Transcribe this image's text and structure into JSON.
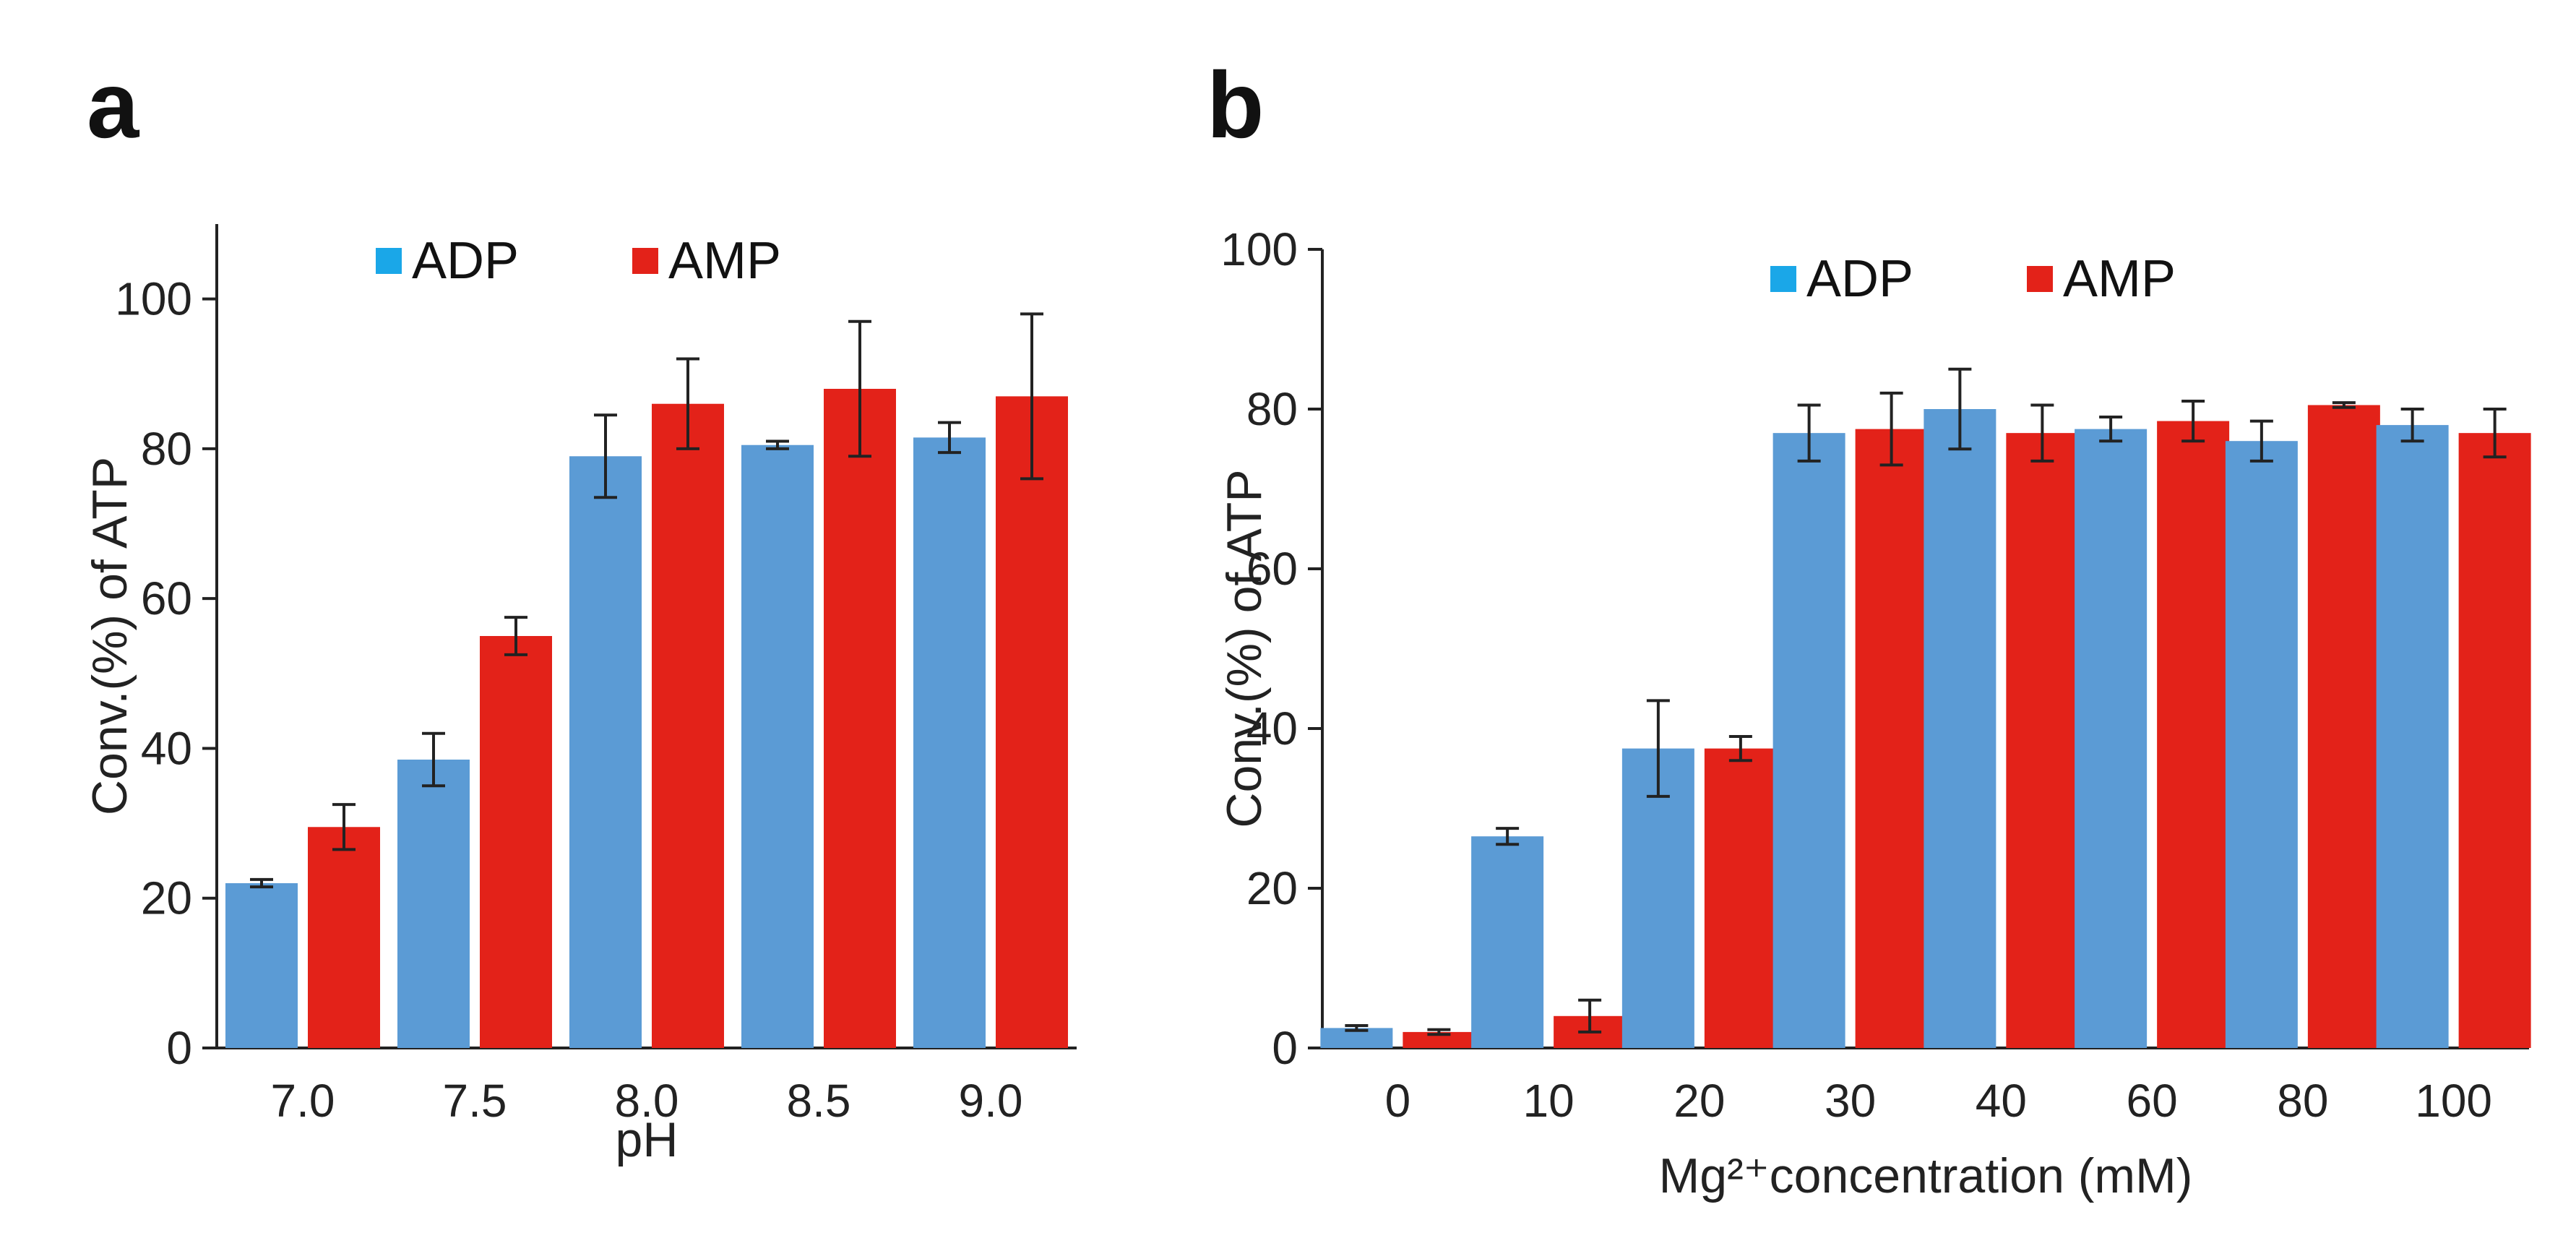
{
  "chart_data": [
    {
      "panel": "a",
      "type": "bar",
      "title": "",
      "xlabel": "pH",
      "ylabel": "Conv.(%) of ATP",
      "categories": [
        "7.0",
        "7.5",
        "8.0",
        "8.5",
        "9.0"
      ],
      "ylim": [
        0,
        110
      ],
      "yticks": [
        0,
        20,
        40,
        60,
        80,
        100
      ],
      "yticklabels": [
        "0",
        "20",
        "40",
        "60",
        "80",
        "100"
      ],
      "grid": false,
      "legend_position": "top",
      "series": [
        {
          "name": "ADP",
          "color": "#5b9bd5",
          "values": [
            22,
            38.5,
            79,
            80.5,
            81.5
          ],
          "errors": [
            0.5,
            3.5,
            5.5,
            0.5,
            2
          ]
        },
        {
          "name": "AMP",
          "color": "#e32219",
          "values": [
            29.5,
            55,
            86,
            88,
            87
          ],
          "errors": [
            3,
            2.5,
            6,
            9,
            11
          ]
        }
      ]
    },
    {
      "panel": "b",
      "type": "bar",
      "title": "",
      "xlabel": "Mg²⁺concentration (mM)",
      "ylabel": "Conv.(%) of ATP",
      "categories": [
        "0",
        "10",
        "20",
        "30",
        "40",
        "60",
        "80",
        "100"
      ],
      "ylim": [
        0,
        100
      ],
      "yticks": [
        0,
        20,
        40,
        60,
        80,
        100
      ],
      "yticklabels": [
        "0",
        "20",
        "40",
        "60",
        "80",
        "100"
      ],
      "grid": false,
      "legend_position": "top",
      "series": [
        {
          "name": "ADP",
          "color": "#5b9bd5",
          "values": [
            2.5,
            26.5,
            37.5,
            77,
            80,
            77.5,
            76,
            78
          ],
          "errors": [
            0.3,
            1,
            6,
            3.5,
            5,
            1.5,
            2.5,
            2
          ]
        },
        {
          "name": "AMP",
          "color": "#e32219",
          "values": [
            2,
            4,
            37.5,
            77.5,
            77,
            78.5,
            80.5,
            77
          ],
          "errors": [
            0.3,
            2,
            1.5,
            4.5,
            3.5,
            2.5,
            0.3,
            3
          ]
        }
      ]
    }
  ]
}
